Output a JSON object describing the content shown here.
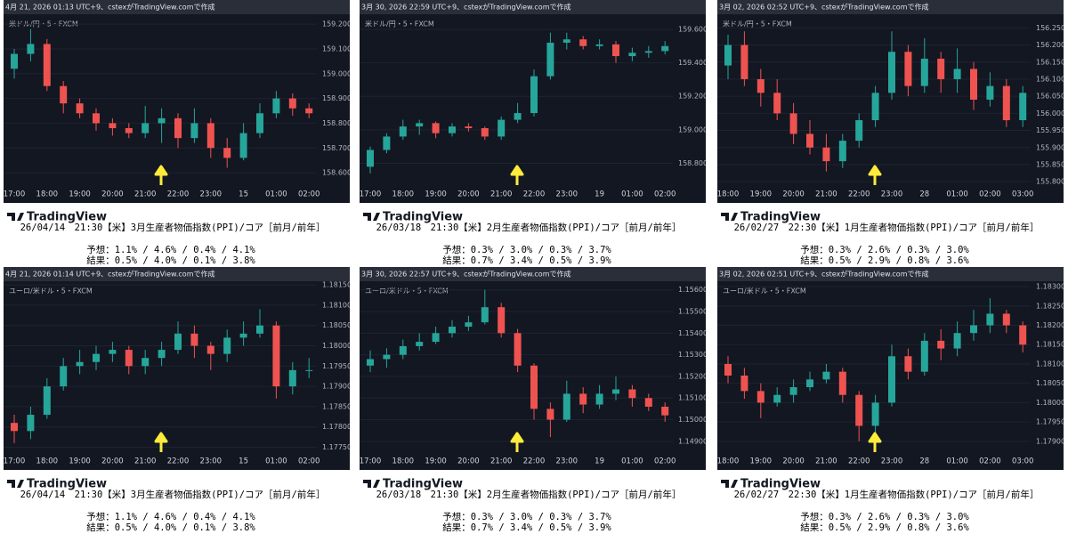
{
  "brand": "TradingView",
  "chart_data": [
    {
      "type": "candlestick",
      "title": "4月 21, 2026 01:13 UTC+9、cstexがTradingView.comで作成",
      "subtitle": "米ドル/円・5・FXCM",
      "categories": [
        "17:00",
        null,
        "18:00",
        null,
        "19:00",
        null,
        "20:00",
        null,
        "21:00",
        null,
        "22:00",
        null,
        "23:00",
        null,
        "15",
        null,
        "01:00",
        null,
        "02:00"
      ],
      "open": [
        159.02,
        159.08,
        159.12,
        158.95,
        158.88,
        158.84,
        158.8,
        158.78,
        158.76,
        158.8,
        158.82,
        158.74,
        158.8,
        158.7,
        158.66,
        158.76,
        158.84,
        158.9,
        158.86
      ],
      "high": [
        159.1,
        159.18,
        159.14,
        158.97,
        158.9,
        158.86,
        158.82,
        158.8,
        158.87,
        158.86,
        158.84,
        158.86,
        158.82,
        158.74,
        158.8,
        158.88,
        158.93,
        158.92,
        158.88
      ],
      "low": [
        158.98,
        159.05,
        158.93,
        158.84,
        158.82,
        158.77,
        158.75,
        158.74,
        158.74,
        158.72,
        158.7,
        158.72,
        158.66,
        158.62,
        158.65,
        158.74,
        158.82,
        158.83,
        158.82
      ],
      "close": [
        159.08,
        159.12,
        158.95,
        158.88,
        158.84,
        158.8,
        158.78,
        158.76,
        158.8,
        158.82,
        158.74,
        158.8,
        158.7,
        158.66,
        158.76,
        158.84,
        158.9,
        158.86,
        158.84
      ],
      "up_color": "#26a69a",
      "down_color": "#ef5350",
      "grid": true,
      "ylim": [
        158.55,
        159.24
      ],
      "yticks": [
        {
          "value": 159.2,
          "label": "159.200"
        },
        {
          "value": 159.1,
          "label": "159.100"
        },
        {
          "value": 159.0,
          "label": "159.000"
        },
        {
          "value": 158.9,
          "label": "158.900"
        },
        {
          "value": 158.8,
          "label": "158.800"
        },
        {
          "value": 158.7,
          "label": "158.700"
        },
        {
          "value": 158.6,
          "label": "158.600"
        }
      ]
    },
    {
      "type": "candlestick",
      "title": "3月 30, 2026 22:59 UTC+9、cstexがTradingView.comで作成",
      "subtitle": "米ドル/円・5・FXCM",
      "categories": [
        "17:00",
        null,
        "18:00",
        null,
        "19:00",
        null,
        "20:00",
        null,
        "21:00",
        null,
        "22:00",
        null,
        "23:00",
        null,
        "19",
        null,
        "01:00",
        null,
        "02:00"
      ],
      "open": [
        158.78,
        158.88,
        158.96,
        159.02,
        159.04,
        158.98,
        159.02,
        159.01,
        158.96,
        159.06,
        159.1,
        159.32,
        159.52,
        159.54,
        159.5,
        159.51,
        159.44,
        159.46,
        159.47
      ],
      "high": [
        158.9,
        158.98,
        159.06,
        159.06,
        159.05,
        159.04,
        159.04,
        159.02,
        159.08,
        159.16,
        159.36,
        159.58,
        159.58,
        159.56,
        159.54,
        159.53,
        159.49,
        159.5,
        159.53
      ],
      "low": [
        158.74,
        158.86,
        158.94,
        158.97,
        158.95,
        158.96,
        158.99,
        158.94,
        158.94,
        159.04,
        159.08,
        159.3,
        159.48,
        159.48,
        159.48,
        159.4,
        159.41,
        159.43,
        159.45
      ],
      "close": [
        158.88,
        158.96,
        159.02,
        159.04,
        158.98,
        159.02,
        159.01,
        158.96,
        159.06,
        159.1,
        159.32,
        159.52,
        159.54,
        159.5,
        159.51,
        159.44,
        159.46,
        159.47,
        159.5
      ],
      "up_color": "#26a69a",
      "down_color": "#ef5350",
      "grid": true,
      "ylim": [
        158.67,
        159.69
      ],
      "yticks": [
        {
          "value": 159.6,
          "label": "159.600"
        },
        {
          "value": 159.4,
          "label": "159.400"
        },
        {
          "value": 159.2,
          "label": "159.200"
        },
        {
          "value": 159.0,
          "label": "159.000"
        },
        {
          "value": 158.8,
          "label": "158.800"
        }
      ]
    },
    {
      "type": "candlestick",
      "title": "3月 02, 2026 02:52 UTC+9、cstexがTradingView.comで作成",
      "subtitle": "米ドル/円・5・FXCM",
      "categories": [
        "18:00",
        null,
        "19:00",
        null,
        "20:00",
        null,
        "21:00",
        null,
        "22:00",
        null,
        "23:00",
        null,
        "28",
        null,
        "01:00",
        null,
        "02:00",
        null,
        "03:00"
      ],
      "open": [
        156.14,
        156.2,
        156.1,
        156.06,
        156.0,
        155.94,
        155.9,
        155.86,
        155.92,
        155.98,
        156.06,
        156.18,
        156.08,
        156.16,
        156.1,
        156.13,
        156.04,
        156.08,
        155.98
      ],
      "high": [
        156.23,
        156.24,
        156.13,
        156.1,
        156.03,
        155.98,
        155.94,
        155.94,
        156.0,
        156.08,
        156.24,
        156.2,
        156.22,
        156.18,
        156.19,
        156.15,
        156.12,
        156.1,
        156.08
      ],
      "low": [
        156.1,
        156.08,
        156.02,
        155.98,
        155.91,
        155.88,
        155.83,
        155.84,
        155.9,
        155.96,
        156.04,
        156.05,
        156.06,
        156.06,
        156.06,
        156.01,
        156.02,
        155.96,
        155.96
      ],
      "close": [
        156.2,
        156.1,
        156.06,
        156.0,
        155.94,
        155.9,
        155.86,
        155.92,
        155.98,
        156.06,
        156.18,
        156.08,
        156.16,
        156.1,
        156.13,
        156.04,
        156.08,
        155.98,
        156.06
      ],
      "up_color": "#26a69a",
      "down_color": "#ef5350",
      "grid": true,
      "ylim": [
        155.79,
        156.29
      ],
      "yticks": [
        {
          "value": 156.25,
          "label": "156.250"
        },
        {
          "value": 156.2,
          "label": "156.200"
        },
        {
          "value": 156.15,
          "label": "156.150"
        },
        {
          "value": 156.1,
          "label": "156.100"
        },
        {
          "value": 156.05,
          "label": "156.050"
        },
        {
          "value": 156.0,
          "label": "156.000"
        },
        {
          "value": 155.95,
          "label": "155.950"
        },
        {
          "value": 155.9,
          "label": "155.900"
        },
        {
          "value": 155.85,
          "label": "155.850"
        },
        {
          "value": 155.8,
          "label": "155.800"
        }
      ]
    },
    {
      "type": "candlestick",
      "title": "4月 21, 2026 01:14 UTC+9、cstexがTradingView.comで作成",
      "subtitle": "ユーロ/米ドル・5・FXCM",
      "categories": [
        "17:00",
        null,
        "18:00",
        null,
        "19:00",
        null,
        "20:00",
        null,
        "21:00",
        null,
        "22:00",
        null,
        "23:00",
        null,
        "15",
        null,
        "01:00",
        null,
        "02:00"
      ],
      "open": [
        1.1781,
        1.1779,
        1.1783,
        1.179,
        1.1795,
        1.1796,
        1.1798,
        1.1799,
        1.1795,
        1.1797,
        1.1799,
        1.1803,
        1.18,
        1.1798,
        1.1802,
        1.1803,
        1.1805,
        1.179,
        1.1794
      ],
      "high": [
        1.1783,
        1.1785,
        1.1792,
        1.1797,
        1.1799,
        1.18,
        1.1801,
        1.18,
        1.1799,
        1.1801,
        1.1806,
        1.1805,
        1.1801,
        1.1804,
        1.1806,
        1.1809,
        1.1806,
        1.1796,
        1.1797
      ],
      "low": [
        1.1776,
        1.1777,
        1.1782,
        1.1789,
        1.1793,
        1.1794,
        1.1796,
        1.1793,
        1.1793,
        1.1795,
        1.1798,
        1.1797,
        1.1794,
        1.1796,
        1.18,
        1.1802,
        1.1787,
        1.1788,
        1.1792
      ],
      "close": [
        1.1779,
        1.1783,
        1.179,
        1.1795,
        1.1796,
        1.1798,
        1.1799,
        1.1795,
        1.1797,
        1.1799,
        1.1803,
        1.18,
        1.1798,
        1.1802,
        1.1803,
        1.1805,
        1.179,
        1.1794,
        1.1794
      ],
      "up_color": "#26a69a",
      "down_color": "#ef5350",
      "grid": true,
      "ylim": [
        1.17738,
        1.18159
      ],
      "yticks": [
        {
          "value": 1.1815,
          "label": "1.18150"
        },
        {
          "value": 1.181,
          "label": "1.18100"
        },
        {
          "value": 1.1805,
          "label": "1.18050"
        },
        {
          "value": 1.18,
          "label": "1.18000"
        },
        {
          "value": 1.1795,
          "label": "1.17950"
        },
        {
          "value": 1.179,
          "label": "1.17900"
        },
        {
          "value": 1.1785,
          "label": "1.17850"
        },
        {
          "value": 1.178,
          "label": "1.17800"
        },
        {
          "value": 1.1775,
          "label": "1.17750"
        }
      ]
    },
    {
      "type": "candlestick",
      "title": "3月 30, 2026 22:57 UTC+9、cstexがTradingView.comで作成",
      "subtitle": "ユーロ/米ドル・5・FXCM",
      "categories": [
        "17:00",
        null,
        "18:00",
        null,
        "19:00",
        null,
        "20:00",
        null,
        "21:00",
        null,
        "22:00",
        null,
        "23:00",
        null,
        "19",
        null,
        "01:00",
        null,
        "02:00"
      ],
      "open": [
        1.1525,
        1.1528,
        1.153,
        1.1534,
        1.1536,
        1.154,
        1.1543,
        1.1545,
        1.1552,
        1.154,
        1.1525,
        1.1505,
        1.15,
        1.1512,
        1.1507,
        1.1512,
        1.1514,
        1.151,
        1.1506
      ],
      "high": [
        1.1532,
        1.1533,
        1.1537,
        1.154,
        1.1543,
        1.1546,
        1.1548,
        1.156,
        1.1554,
        1.1542,
        1.1526,
        1.1508,
        1.1518,
        1.1515,
        1.1516,
        1.152,
        1.1516,
        1.1512,
        1.1508
      ],
      "low": [
        1.1522,
        1.1524,
        1.1528,
        1.1532,
        1.1535,
        1.1538,
        1.1541,
        1.1544,
        1.1538,
        1.1522,
        1.15,
        1.1492,
        1.1499,
        1.1503,
        1.1505,
        1.1509,
        1.1506,
        1.1504,
        1.1499
      ],
      "close": [
        1.1528,
        1.153,
        1.1534,
        1.1536,
        1.154,
        1.1543,
        1.1545,
        1.1552,
        1.154,
        1.1525,
        1.1505,
        1.15,
        1.1512,
        1.1507,
        1.1512,
        1.1514,
        1.151,
        1.1506,
        1.1502
      ],
      "up_color": "#26a69a",
      "down_color": "#ef5350",
      "grid": true,
      "ylim": [
        1.1485,
        1.1564
      ],
      "yticks": [
        {
          "value": 1.156,
          "label": "1.15600"
        },
        {
          "value": 1.155,
          "label": "1.15500"
        },
        {
          "value": 1.154,
          "label": "1.15400"
        },
        {
          "value": 1.153,
          "label": "1.15300"
        },
        {
          "value": 1.152,
          "label": "1.15200"
        },
        {
          "value": 1.151,
          "label": "1.15100"
        },
        {
          "value": 1.15,
          "label": "1.15000"
        },
        {
          "value": 1.149,
          "label": "1.14900"
        }
      ]
    },
    {
      "type": "candlestick",
      "title": "3月 02, 2026 02:51 UTC+9、cstexがTradingView.comで作成",
      "subtitle": "ユーロ/米ドル・5・FXCM",
      "categories": [
        "18:00",
        null,
        "19:00",
        null,
        "20:00",
        null,
        "21:00",
        null,
        "22:00",
        null,
        "23:00",
        null,
        "28",
        null,
        "01:00",
        null,
        "02:00",
        null,
        "03:00"
      ],
      "open": [
        1.181,
        1.1807,
        1.1803,
        1.18,
        1.1802,
        1.1804,
        1.1806,
        1.1808,
        1.1802,
        1.1794,
        1.18,
        1.1812,
        1.1808,
        1.1816,
        1.1814,
        1.1818,
        1.182,
        1.1823,
        1.182
      ],
      "high": [
        1.1812,
        1.1809,
        1.1805,
        1.1804,
        1.1806,
        1.1808,
        1.181,
        1.1809,
        1.1803,
        1.1802,
        1.1815,
        1.1814,
        1.1818,
        1.1819,
        1.1821,
        1.1824,
        1.1827,
        1.1824,
        1.1821
      ],
      "low": [
        1.1805,
        1.1801,
        1.1796,
        1.1799,
        1.18,
        1.1803,
        1.1805,
        1.18,
        1.179,
        1.1792,
        1.1799,
        1.1806,
        1.1807,
        1.1811,
        1.1812,
        1.1816,
        1.1818,
        1.1818,
        1.1813
      ],
      "close": [
        1.1807,
        1.1803,
        1.18,
        1.1802,
        1.1804,
        1.1806,
        1.1808,
        1.1802,
        1.1794,
        1.18,
        1.1812,
        1.1808,
        1.1816,
        1.1814,
        1.1818,
        1.182,
        1.1823,
        1.182,
        1.1815
      ],
      "up_color": "#26a69a",
      "down_color": "#ef5350",
      "grid": true,
      "ylim": [
        1.17872,
        1.18314
      ],
      "yticks": [
        {
          "value": 1.183,
          "label": "1.18300"
        },
        {
          "value": 1.1825,
          "label": "1.18250"
        },
        {
          "value": 1.182,
          "label": "1.18200"
        },
        {
          "value": 1.1815,
          "label": "1.18150"
        },
        {
          "value": 1.181,
          "label": "1.18100"
        },
        {
          "value": 1.1805,
          "label": "1.18050"
        },
        {
          "value": 1.18,
          "label": "1.18000"
        },
        {
          "value": 1.1795,
          "label": "1.17950"
        },
        {
          "value": 1.179,
          "label": "1.17900"
        }
      ]
    }
  ],
  "captions": [
    {
      "headline": "26/04/14　21:30【米】3月生産者物価指数(PPI)/コア［前月/前年］",
      "forecast": "予想：1.1% / 4.6% / 0.4% / 4.1%",
      "result": "結果：0.5% / 4.0% / 0.1% / 3.8%"
    },
    {
      "headline": "26/03/18　21:30【米】2月生産者物価指数(PPI)/コア［前月/前年］",
      "forecast": "予想：0.3% / 3.0% / 0.3% / 3.7%",
      "result": "結果：0.7% / 3.4% / 0.5% / 3.9%"
    },
    {
      "headline": "26/02/27　22:30【米】1月生産者物価指数(PPI)/コア［前月/前年］",
      "forecast": "予想：0.3% / 2.6% / 0.3% / 3.0%",
      "result": "結果：0.5% / 2.9% / 0.8% / 3.6%"
    },
    {
      "headline": "26/04/14　21:30【米】3月生産者物価指数(PPI)/コア［前月/前年］",
      "forecast": "予想：1.1% / 4.6% / 0.4% / 4.1%",
      "result": "結果：0.5% / 4.0% / 0.1% / 3.8%"
    },
    {
      "headline": "26/03/18　21:30【米】2月生産者物価指数(PPI)/コア［前月/前年］",
      "forecast": "予想：0.3% / 3.0% / 0.3% / 3.7%",
      "result": "結果：0.7% / 3.4% / 0.5% / 3.9%"
    },
    {
      "headline": "26/02/27　22:30【米】1月生産者物価指数(PPI)/コア［前月/前年］",
      "forecast": "予想：0.3% / 2.6% / 0.3% / 3.0%",
      "result": "結果：0.5% / 2.9% / 0.8% / 3.6%"
    }
  ]
}
